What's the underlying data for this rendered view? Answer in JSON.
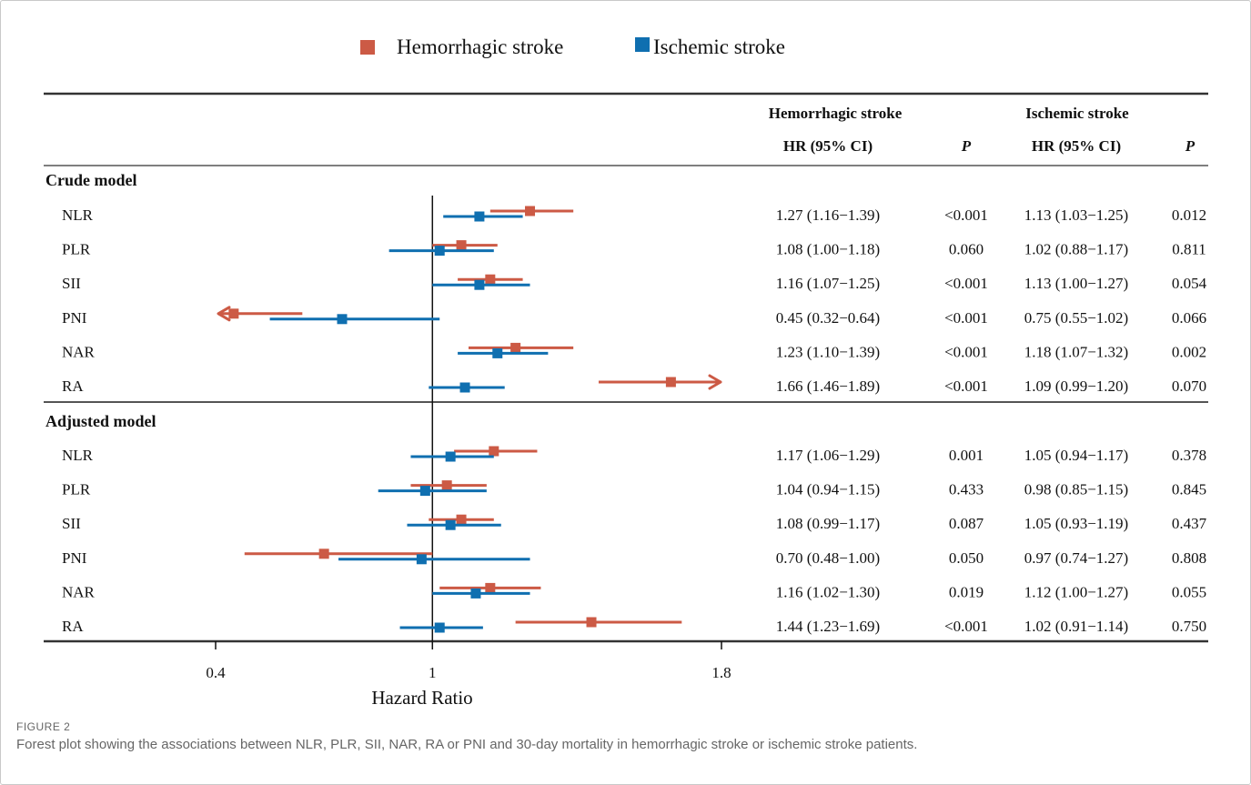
{
  "figure": {
    "label": "FIGURE 2",
    "caption": "Forest plot showing the associations between NLR, PLR, SII, NAR, RA or PNI and 30-day mortality in hemorrhagic stroke or ischemic stroke patients."
  },
  "colors": {
    "hemorrhagic": "#cc5a45",
    "ischemic": "#0f6fb0"
  },
  "legend": {
    "hemorrhagic": "Hemorrhagic stroke",
    "ischemic": "Ischemic stroke"
  },
  "table_headers": {
    "group_hemorrhagic": "Hemorrhagic stroke",
    "group_ischemic": "Ischemic stroke",
    "hr_ci_hemorrhagic": "HR (95% CI)",
    "p_hemorrhagic": "P",
    "hr_ci_ischemic": "HR (95% CI)",
    "p_ischemic": "P"
  },
  "chart_data": {
    "type": "forest",
    "xlabel": "Hazard Ratio",
    "xticks": [
      0.4,
      1,
      1.8
    ],
    "xlim": [
      0.4,
      1.8
    ],
    "reference_line": 1,
    "sections": [
      {
        "name": "Crude model",
        "rows": [
          {
            "label": "NLR",
            "hem": {
              "hr": 1.27,
              "lo": 1.16,
              "hi": 1.39,
              "text": "1.27 (1.16−1.39)",
              "p": "<0.001"
            },
            "isc": {
              "hr": 1.13,
              "lo": 1.03,
              "hi": 1.25,
              "text": "1.13 (1.03−1.25)",
              "p": "0.012"
            }
          },
          {
            "label": "PLR",
            "hem": {
              "hr": 1.08,
              "lo": 1.0,
              "hi": 1.18,
              "text": "1.08 (1.00−1.18)",
              "p": "0.060"
            },
            "isc": {
              "hr": 1.02,
              "lo": 0.88,
              "hi": 1.17,
              "text": "1.02 (0.88−1.17)",
              "p": "0.811"
            }
          },
          {
            "label": "SII",
            "hem": {
              "hr": 1.16,
              "lo": 1.07,
              "hi": 1.25,
              "text": "1.16 (1.07−1.25)",
              "p": "<0.001"
            },
            "isc": {
              "hr": 1.13,
              "lo": 1.0,
              "hi": 1.27,
              "text": "1.13 (1.00−1.27)",
              "p": "0.054"
            }
          },
          {
            "label": "PNI",
            "hem": {
              "hr": 0.45,
              "lo": 0.32,
              "hi": 0.64,
              "text": "0.45 (0.32−0.64)",
              "p": "<0.001"
            },
            "isc": {
              "hr": 0.75,
              "lo": 0.55,
              "hi": 1.02,
              "text": "0.75 (0.55−1.02)",
              "p": "0.066"
            }
          },
          {
            "label": "NAR",
            "hem": {
              "hr": 1.23,
              "lo": 1.1,
              "hi": 1.39,
              "text": "1.23 (1.10−1.39)",
              "p": "<0.001"
            },
            "isc": {
              "hr": 1.18,
              "lo": 1.07,
              "hi": 1.32,
              "text": "1.18 (1.07−1.32)",
              "p": "0.002"
            }
          },
          {
            "label": "RA",
            "hem": {
              "hr": 1.66,
              "lo": 1.46,
              "hi": 1.89,
              "text": "1.66 (1.46−1.89)",
              "p": "<0.001"
            },
            "isc": {
              "hr": 1.09,
              "lo": 0.99,
              "hi": 1.2,
              "text": "1.09 (0.99−1.20)",
              "p": "0.070"
            }
          }
        ]
      },
      {
        "name": "Adjusted model",
        "rows": [
          {
            "label": "NLR",
            "hem": {
              "hr": 1.17,
              "lo": 1.06,
              "hi": 1.29,
              "text": "1.17 (1.06−1.29)",
              "p": "0.001"
            },
            "isc": {
              "hr": 1.05,
              "lo": 0.94,
              "hi": 1.17,
              "text": "1.05 (0.94−1.17)",
              "p": "0.378"
            }
          },
          {
            "label": "PLR",
            "hem": {
              "hr": 1.04,
              "lo": 0.94,
              "hi": 1.15,
              "text": "1.04 (0.94−1.15)",
              "p": "0.433"
            },
            "isc": {
              "hr": 0.98,
              "lo": 0.85,
              "hi": 1.15,
              "text": "0.98 (0.85−1.15)",
              "p": "0.845"
            }
          },
          {
            "label": "SII",
            "hem": {
              "hr": 1.08,
              "lo": 0.99,
              "hi": 1.17,
              "text": "1.08 (0.99−1.17)",
              "p": "0.087"
            },
            "isc": {
              "hr": 1.05,
              "lo": 0.93,
              "hi": 1.19,
              "text": "1.05 (0.93−1.19)",
              "p": "0.437"
            }
          },
          {
            "label": "PNI",
            "hem": {
              "hr": 0.7,
              "lo": 0.48,
              "hi": 1.0,
              "text": "0.70 (0.48−1.00)",
              "p": "0.050"
            },
            "isc": {
              "hr": 0.97,
              "lo": 0.74,
              "hi": 1.27,
              "text": "0.97 (0.74−1.27)",
              "p": "0.808"
            }
          },
          {
            "label": "NAR",
            "hem": {
              "hr": 1.16,
              "lo": 1.02,
              "hi": 1.3,
              "text": "1.16 (1.02−1.30)",
              "p": "0.019"
            },
            "isc": {
              "hr": 1.12,
              "lo": 1.0,
              "hi": 1.27,
              "text": "1.12 (1.00−1.27)",
              "p": "0.055"
            }
          },
          {
            "label": "RA",
            "hem": {
              "hr": 1.44,
              "lo": 1.23,
              "hi": 1.69,
              "text": "1.44 (1.23−1.69)",
              "p": "<0.001"
            },
            "isc": {
              "hr": 1.02,
              "lo": 0.91,
              "hi": 1.14,
              "text": "1.02 (0.91−1.14)",
              "p": "0.750"
            }
          }
        ]
      }
    ]
  }
}
